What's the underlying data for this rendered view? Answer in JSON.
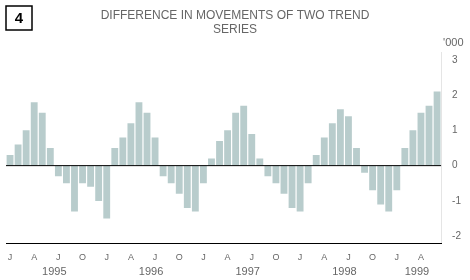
{
  "chart_data": {
    "type": "bar",
    "title": [
      "DIFFERENCE IN MOVEMENTS OF TWO TREND",
      "SERIES"
    ],
    "ylabel": "'000",
    "annotations": [
      "4"
    ],
    "categories": [
      "J",
      null,
      null,
      "A",
      null,
      null,
      "J",
      null,
      null,
      "O",
      null,
      null,
      "J",
      null,
      null,
      "A",
      null,
      null,
      "J",
      null,
      null,
      "O",
      null,
      null,
      "J",
      null,
      null,
      "A",
      null,
      null,
      "J",
      null,
      null,
      "O",
      null,
      null,
      "J",
      null,
      null,
      "A",
      null,
      null,
      "J",
      null,
      null,
      "O",
      null,
      null,
      "J",
      null,
      null,
      "A",
      null,
      null
    ],
    "group_labels": [
      "1995",
      "1996",
      "1997",
      "1998",
      "1999"
    ],
    "values": [
      0.3,
      0.6,
      1.0,
      1.8,
      1.5,
      0.5,
      -0.3,
      -0.5,
      -1.3,
      -0.5,
      -0.6,
      -1.0,
      -1.5,
      0.5,
      0.8,
      1.2,
      1.8,
      1.5,
      0.8,
      -0.3,
      -0.5,
      -0.8,
      -1.2,
      -1.3,
      -0.5,
      0.2,
      0.7,
      1.0,
      1.5,
      1.7,
      0.9,
      0.2,
      -0.3,
      -0.5,
      -0.8,
      -1.2,
      -1.3,
      -0.5,
      0.3,
      0.8,
      1.2,
      1.6,
      1.4,
      0.5,
      -0.2,
      -0.7,
      -1.1,
      -1.3,
      -0.7,
      0.5,
      1.0,
      1.5,
      1.7,
      2.1
    ],
    "color": "#b8cccc",
    "ylim": [
      -2.2,
      3.2
    ],
    "yticks": [
      -2,
      -1,
      0,
      1,
      2,
      3
    ],
    "grid": false
  }
}
